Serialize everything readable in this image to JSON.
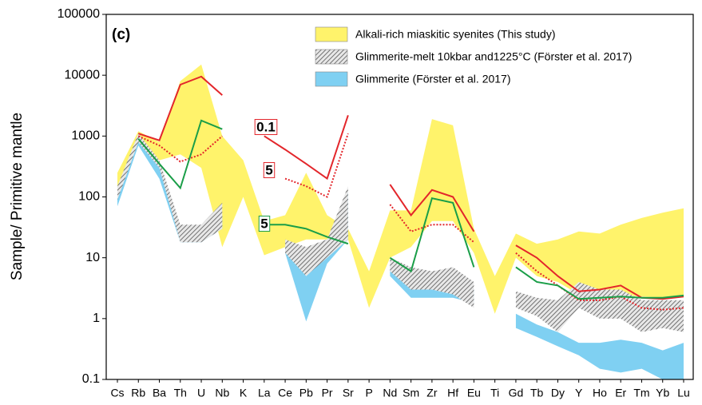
{
  "chart_data": {
    "type": "line",
    "panel_label": "(c)",
    "y_label": "Sample/ Primitive mantle",
    "log_y": true,
    "ylim": [
      0.1,
      100000
    ],
    "yticks": [
      0.1,
      1,
      10,
      100,
      1000,
      10000,
      100000
    ],
    "legend_position": "upper right",
    "categories": [
      "Cs",
      "Rb",
      "Ba",
      "Th",
      "U",
      "Nb",
      "K",
      "La",
      "Ce",
      "Pb",
      "Pr",
      "Sr",
      "P",
      "Nd",
      "Sm",
      "Zr",
      "Hf",
      "Eu",
      "Ti",
      "Gd",
      "Tb",
      "Dy",
      "Y",
      "Ho",
      "Er",
      "Tm",
      "Yb",
      "Lu"
    ],
    "bands": [
      {
        "name": "Alkali-rich miaskitic syenites (This study)",
        "color": "#fff36b",
        "pattern": "solid",
        "upper": [
          250,
          1200,
          800,
          8000,
          15000,
          1000,
          400,
          40,
          50,
          250,
          50,
          30,
          6,
          60,
          60,
          1900,
          1500,
          30,
          5,
          25,
          17,
          20,
          27,
          25,
          35,
          45,
          55,
          65
        ],
        "lower": [
          100,
          700,
          400,
          500,
          300,
          15,
          100,
          11,
          15,
          20,
          20,
          20,
          1.5,
          10,
          15,
          40,
          40,
          12,
          1.2,
          10,
          5,
          4,
          2.5,
          2.2,
          2.4,
          2.3,
          2.2,
          2.3
        ]
      },
      {
        "name": "Glimmerite (Förster et al. 2017)",
        "color": "#7fd0f2",
        "pattern": "solid",
        "upper": [
          110,
          800,
          300,
          25,
          25,
          50,
          null,
          null,
          16,
          5,
          12,
          120,
          null,
          8,
          3,
          3,
          3.5,
          3,
          null,
          1.2,
          0.8,
          0.6,
          0.4,
          0.4,
          0.45,
          0.4,
          0.3,
          0.4
        ],
        "lower": [
          70,
          700,
          200,
          18,
          18,
          30,
          null,
          null,
          12,
          0.9,
          8,
          20,
          null,
          5,
          2.2,
          2.2,
          2.2,
          1.8,
          null,
          0.7,
          0.5,
          0.35,
          0.25,
          0.15,
          0.13,
          0.15,
          0.1,
          0.1
        ]
      },
      {
        "name": "Glimmerite-melt 10kbar and1225°C (Förster et al. 2017)",
        "color": "#7a7a7a",
        "pattern": "hatch",
        "upper": [
          150,
          1100,
          400,
          35,
          35,
          80,
          null,
          null,
          20,
          15,
          20,
          150,
          null,
          10,
          7,
          6,
          7,
          4,
          null,
          2.8,
          2.2,
          2,
          4,
          3,
          3,
          2,
          2,
          2
        ],
        "lower": [
          90,
          800,
          300,
          18,
          18,
          30,
          null,
          null,
          12,
          5,
          10,
          20,
          null,
          6,
          3,
          3,
          2.5,
          1.5,
          null,
          1.5,
          1.1,
          0.6,
          1.5,
          1,
          1,
          0.6,
          0.7,
          0.6
        ]
      }
    ],
    "legend_order": [
      0,
      2,
      1
    ],
    "series": [
      {
        "label": "0.1",
        "color": "#e3262b",
        "dashed": false,
        "values": [
          null,
          1100,
          850,
          7000,
          9500,
          4700,
          null,
          1000,
          600,
          350,
          200,
          2200,
          null,
          160,
          50,
          130,
          100,
          27,
          null,
          16,
          10,
          5,
          2.8,
          3,
          3.5,
          2.2,
          2.1,
          2.3
        ]
      },
      {
        "label": "5",
        "color": "#e3262b",
        "dashed": true,
        "values": [
          null,
          1000,
          700,
          380,
          500,
          1000,
          null,
          null,
          200,
          150,
          100,
          1100,
          null,
          75,
          27,
          35,
          35,
          18,
          null,
          12,
          6,
          3.5,
          2,
          2,
          2.3,
          1.5,
          1.4,
          1.5
        ]
      },
      {
        "label": "5",
        "color": "#1a9e48",
        "dashed": false,
        "values": [
          null,
          900,
          350,
          140,
          1800,
          1300,
          null,
          35,
          35,
          30,
          22,
          17,
          null,
          10,
          6,
          95,
          80,
          7,
          null,
          7,
          4,
          3.5,
          2.1,
          2.2,
          2.3,
          2.2,
          2.2,
          2.4
        ]
      }
    ]
  }
}
